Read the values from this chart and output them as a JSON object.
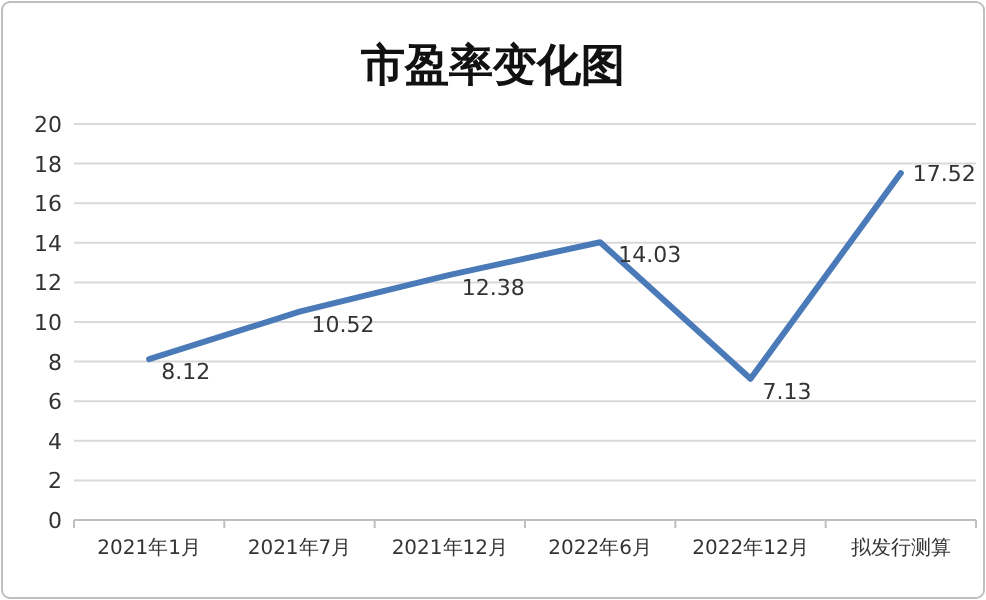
{
  "chart_data": {
    "type": "line",
    "title": "市盈率变化图",
    "categories": [
      "2021年1月",
      "2021年7月",
      "2021年12月",
      "2022年6月",
      "2022年12月",
      "拟发行测算"
    ],
    "series": [
      {
        "color": "#4a7ab8",
        "values": [
          8.12,
          10.52,
          12.38,
          14.03,
          7.13,
          17.52
        ]
      }
    ],
    "ylim": [
      0,
      20
    ],
    "yticks": [
      0,
      2,
      4,
      6,
      8,
      10,
      12,
      14,
      16,
      18,
      20
    ],
    "grid": "y",
    "data_labels": true,
    "marker": "none",
    "line_style": "solid"
  }
}
